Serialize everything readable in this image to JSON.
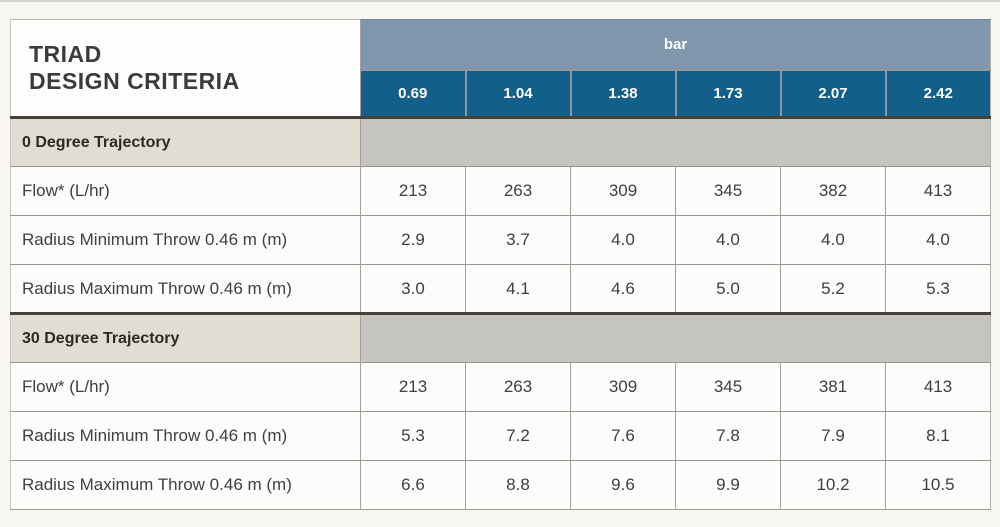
{
  "table": {
    "title_lines": [
      "TRIAD",
      "DESIGN CRITERIA"
    ],
    "unit_header": "bar",
    "pressures": [
      "0.69",
      "1.04",
      "1.38",
      "1.73",
      "2.07",
      "2.42"
    ],
    "sections": [
      {
        "label": "0 Degree Trajectory",
        "rows": [
          {
            "label": "Flow* (L/hr)",
            "values": [
              "213",
              "263",
              "309",
              "345",
              "382",
              "413"
            ]
          },
          {
            "label": "Radius Minimum Throw 0.46 m (m)",
            "values": [
              "2.9",
              "3.7",
              "4.0",
              "4.0",
              "4.0",
              "4.0"
            ]
          },
          {
            "label": "Radius Maximum Throw 0.46 m (m)",
            "values": [
              "3.0",
              "4.1",
              "4.6",
              "5.0",
              "5.2",
              "5.3"
            ]
          }
        ]
      },
      {
        "label": "30 Degree Trajectory",
        "rows": [
          {
            "label": "Flow* (L/hr)",
            "values": [
              "213",
              "263",
              "309",
              "345",
              "381",
              "413"
            ]
          },
          {
            "label": "Radius Minimum Throw 0.46 m (m)",
            "values": [
              "5.3",
              "7.2",
              "7.6",
              "7.8",
              "7.9",
              "8.1"
            ]
          },
          {
            "label": "Radius Maximum Throw 0.46 m (m)",
            "values": [
              "6.6",
              "8.8",
              "9.6",
              "9.9",
              "10.2",
              "10.5"
            ]
          }
        ]
      }
    ],
    "colors": {
      "pressure_header_bg": "#12608a",
      "unit_band_bg": "#7f96ad",
      "section_label_bg": "#e2ddd2",
      "section_fill_bg": "#c6c4c0",
      "section_top_border": "#46423b",
      "row_bg": "#fcfcfa",
      "page_bg": "#f7f6f3",
      "header_text": "#ffffff",
      "body_text": "#3f3f3f"
    }
  }
}
